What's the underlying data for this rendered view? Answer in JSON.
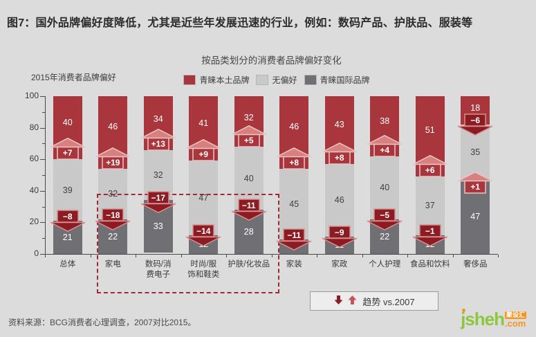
{
  "header": {
    "title": "图7：国外品牌偏好度降低，尤其是近些年发展迅速的行业，例如：数码产品、护肤品、服装等"
  },
  "chart": {
    "title": "按品类划分的消费者品牌偏好变化",
    "y_axis_title": "2015年消费者品牌偏好",
    "legend": [
      {
        "label": "青睐本土品牌",
        "color": "#a8363c"
      },
      {
        "label": "无偏好",
        "color": "#c9c9c9"
      },
      {
        "label": "青睐国际品牌",
        "color": "#706f73"
      }
    ],
    "trend_legend_label": "趋势 vs.2007",
    "colors": {
      "local": "#a8363c",
      "neutral": "#c9c9c9",
      "international": "#706f73",
      "arrow_up": "#d88080",
      "arrow_up_stroke": "#ebc6c6",
      "arrow_down": "#8c1c24",
      "arrow_down_stroke": "#d98f8f",
      "highlight_border": "#9b2c35",
      "background": "#dcdcdc"
    }
  },
  "chart_data": {
    "type": "bar",
    "stacked": true,
    "title": "按品类划分的消费者品牌偏好变化",
    "ylabel": "2015年消费者品牌偏好",
    "ylim": [
      0,
      100
    ],
    "yticks": [
      0,
      20,
      40,
      60,
      80,
      100
    ],
    "legend_position": "top",
    "categories": [
      "总体",
      "家电",
      "数码/消费电子",
      "时尚/服饰和鞋类",
      "护肤/化妆品",
      "家装",
      "家政",
      "个人护理",
      "食品和饮料",
      "奢侈品"
    ],
    "tick_labels": [
      "总体",
      "家电",
      "数码/消\n费电子",
      "时尚/服\n饰和鞋类",
      "护肤/化妆品",
      "家装",
      "家政",
      "个人护理",
      "食品和饮料",
      "奢侈品"
    ],
    "series": [
      {
        "name": "青睐本土品牌",
        "values": [
          40,
          46,
          34,
          41,
          32,
          46,
          43,
          38,
          51,
          18
        ]
      },
      {
        "name": "无偏好",
        "values": [
          39,
          32,
          32,
          47,
          40,
          45,
          46,
          40,
          37,
          35
        ]
      },
      {
        "name": "青睐国际品牌",
        "values": [
          21,
          22,
          33,
          12,
          28,
          9,
          11,
          22,
          12,
          47
        ]
      }
    ],
    "changes_vs_2007": {
      "local": [
        "+7",
        "+19",
        "+13",
        "+9",
        "+5",
        "+8",
        "+8",
        "+4",
        "+6",
        "−6"
      ],
      "international": [
        "−8",
        "−18",
        "−17",
        "−14",
        "−11",
        "−11",
        "−9",
        "−5",
        "−1",
        "+1"
      ]
    },
    "highlighted_categories": [
      "家电",
      "数码/消费电子",
      "时尚/服饰和鞋类",
      "护肤/化妆品"
    ]
  },
  "footer": {
    "source": "资料来源：BCG消费者心理调查，2007对比2015。",
    "logo": {
      "name": "jsheh",
      "badge": "聚设汇",
      "tld": ".com"
    }
  }
}
